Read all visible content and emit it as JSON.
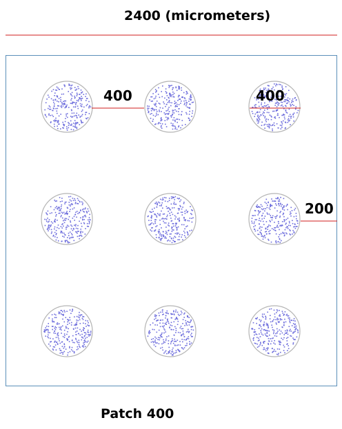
{
  "diagram": {
    "title": "2400 (micrometers)",
    "caption": "Patch 400",
    "dimension_labels": {
      "pitch_top_left": "400",
      "diameter_top_right": "400",
      "edge_margin_right": "200"
    },
    "grid": {
      "rows": 3,
      "columns": 3,
      "spot_count": 9
    },
    "colors": {
      "measure_line": "#d01c1c",
      "substrate_border": "#5b8fb9",
      "spot_outline": "#b4b4b4",
      "dots": "#6d6ddc"
    }
  }
}
